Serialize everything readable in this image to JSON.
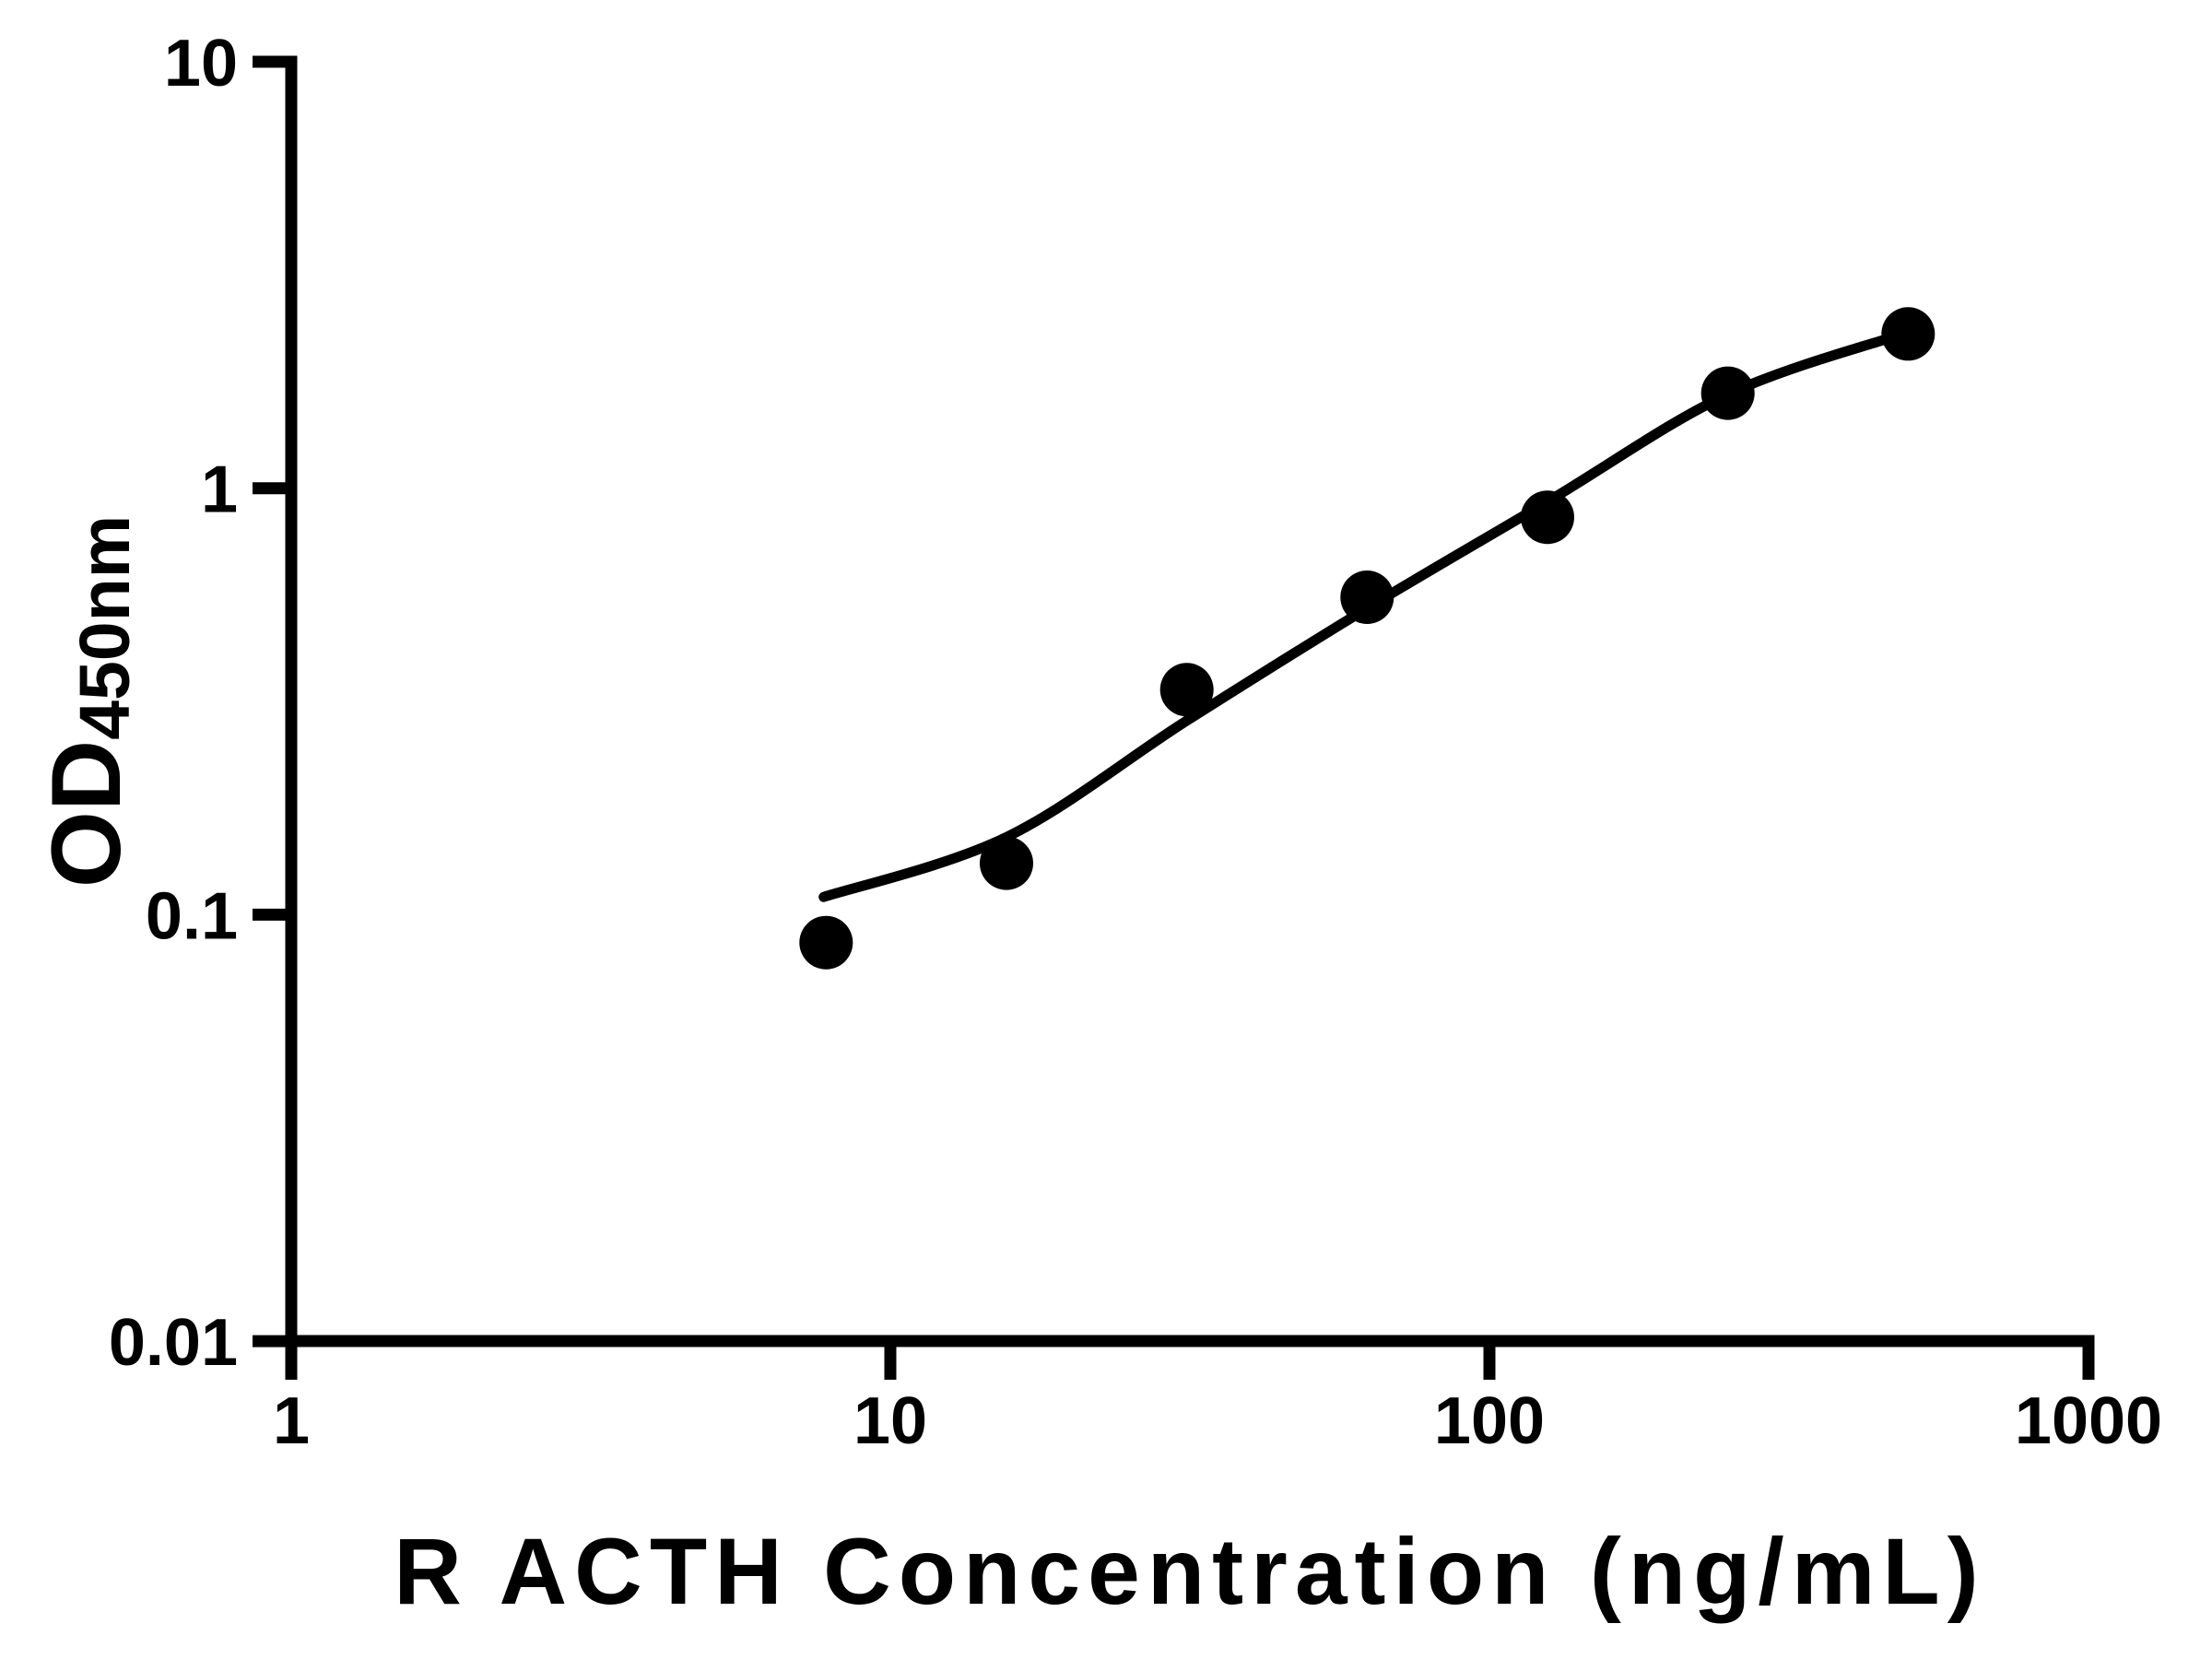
{
  "page": {
    "background_color": "#ffffff",
    "foreground_color": "#000000"
  },
  "chart_data": {
    "type": "scatter",
    "subtype": "elisa-standard-curve",
    "title": "",
    "xlabel": "R ACTH Concentration (ng/mL)",
    "ylabel": {
      "main": "OD",
      "subscript": "450nm"
    },
    "x_scale": "log",
    "y_scale": "log",
    "xlim": [
      1,
      1000
    ],
    "ylim": [
      0.01,
      10
    ],
    "grid": false,
    "legend": "none",
    "x_ticks": [
      {
        "value": 1,
        "label": "1"
      },
      {
        "value": 10,
        "label": "10"
      },
      {
        "value": 100,
        "label": "100"
      },
      {
        "value": 1000,
        "label": "1000"
      }
    ],
    "y_ticks": [
      {
        "value": 10,
        "label": "10"
      },
      {
        "value": 1,
        "label": "1"
      },
      {
        "value": 0.1,
        "label": "0.1"
      },
      {
        "value": 0.01,
        "label": "0.01"
      }
    ],
    "points": [
      {
        "x": 7.8125,
        "y": 0.086
      },
      {
        "x": 15.625,
        "y": 0.132
      },
      {
        "x": 31.25,
        "y": 0.337
      },
      {
        "x": 62.5,
        "y": 0.555
      },
      {
        "x": 125,
        "y": 0.855
      },
      {
        "x": 250,
        "y": 1.67
      },
      {
        "x": 500,
        "y": 2.3
      }
    ],
    "fit_curve": [
      {
        "x": 7.74,
        "y": 0.11
      },
      {
        "x": 15.625,
        "y": 0.152
      },
      {
        "x": 31.25,
        "y": 0.285
      },
      {
        "x": 62.5,
        "y": 0.523
      },
      {
        "x": 125,
        "y": 0.93
      },
      {
        "x": 250,
        "y": 1.66
      },
      {
        "x": 500,
        "y": 2.32
      }
    ],
    "marker_color": "#000000",
    "curve_color": "#000000",
    "axis_color": "#000000"
  }
}
